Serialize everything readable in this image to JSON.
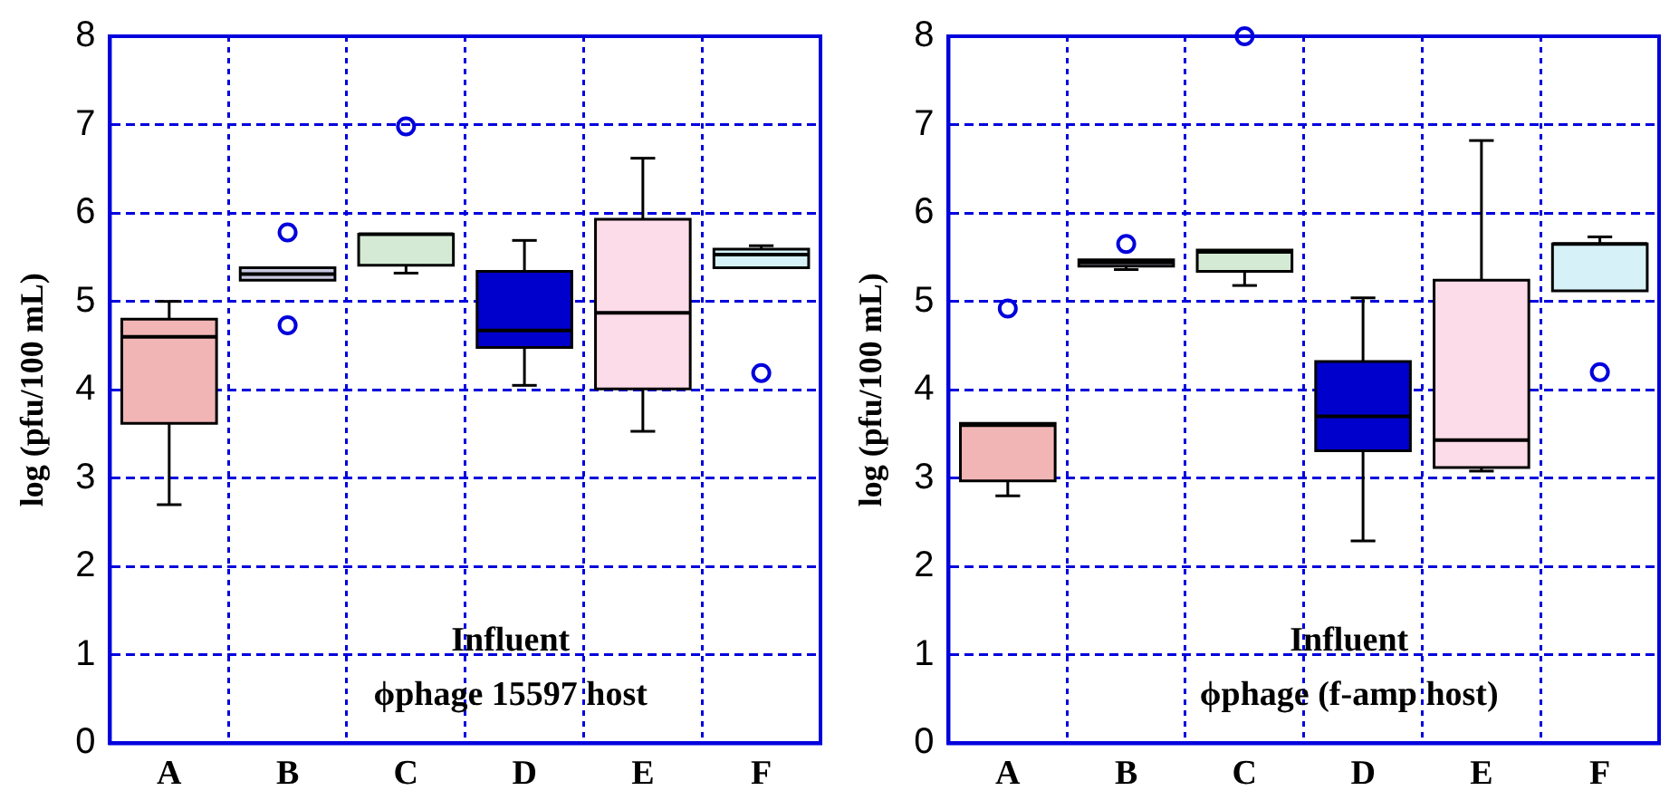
{
  "chart_data": [
    {
      "type": "box",
      "ylabel": "log (pfu/100 mL)",
      "categories": [
        "A",
        "B",
        "C",
        "D",
        "E",
        "F"
      ],
      "colors": [
        "#f2b5b5",
        "#c8c8e0",
        "#d4ead4",
        "#0000cc",
        "#fcdce8",
        "#d6f2f8"
      ],
      "ylim": [
        0,
        8
      ],
      "yticks": [
        0,
        1,
        2,
        3,
        4,
        5,
        6,
        7,
        8
      ],
      "grid": true,
      "legend": false,
      "annotations": [
        "Influent",
        "ϕphage 15597 host"
      ],
      "boxes": [
        {
          "low": 2.7,
          "q1": 3.62,
          "median": 4.6,
          "q3": 4.8,
          "high": 5.0
        },
        {
          "low": 5.24,
          "q1": 5.24,
          "median": 5.31,
          "q3": 5.38,
          "high": 5.38,
          "outliers": [
            5.78,
            4.73
          ]
        },
        {
          "low": 5.32,
          "q1": 5.41,
          "median": 5.76,
          "q3": 5.76,
          "high": 5.76,
          "outliers": [
            6.98
          ]
        },
        {
          "low": 4.05,
          "q1": 4.48,
          "median": 4.67,
          "q3": 5.34,
          "high": 5.69
        },
        {
          "low": 3.53,
          "q1": 4.01,
          "median": 4.87,
          "q3": 5.93,
          "high": 6.62
        },
        {
          "low": 5.38,
          "q1": 5.38,
          "median": 5.53,
          "q3": 5.59,
          "high": 5.63,
          "outliers": [
            4.19
          ]
        }
      ]
    },
    {
      "type": "box",
      "ylabel": "log (pfu/100 mL)",
      "categories": [
        "A",
        "B",
        "C",
        "D",
        "E",
        "F"
      ],
      "colors": [
        "#f2b5b5",
        "#c8c8e0",
        "#d4ead4",
        "#0000cc",
        "#fcdce8",
        "#d6f2f8"
      ],
      "ylim": [
        0,
        8
      ],
      "yticks": [
        0,
        1,
        2,
        3,
        4,
        5,
        6,
        7,
        8
      ],
      "grid": true,
      "legend": false,
      "annotations": [
        "Influent",
        "ϕphage (f-amp host)"
      ],
      "boxes": [
        {
          "low": 2.8,
          "q1": 2.97,
          "median": 3.6,
          "q3": 3.62,
          "high": 3.62,
          "outliers": [
            4.92
          ]
        },
        {
          "low": 5.36,
          "q1": 5.4,
          "median": 5.44,
          "q3": 5.47,
          "high": 5.47,
          "outliers": [
            5.65
          ]
        },
        {
          "low": 5.18,
          "q1": 5.34,
          "median": 5.56,
          "q3": 5.58,
          "high": 5.58,
          "outliers": [
            8.0
          ]
        },
        {
          "low": 2.29,
          "q1": 3.31,
          "median": 3.7,
          "q3": 4.32,
          "high": 5.04
        },
        {
          "low": 3.08,
          "q1": 3.12,
          "median": 3.43,
          "q3": 5.24,
          "high": 6.82
        },
        {
          "low": 5.12,
          "q1": 5.12,
          "median": 5.65,
          "q3": 5.65,
          "high": 5.73,
          "outliers": [
            4.2
          ]
        }
      ]
    }
  ]
}
